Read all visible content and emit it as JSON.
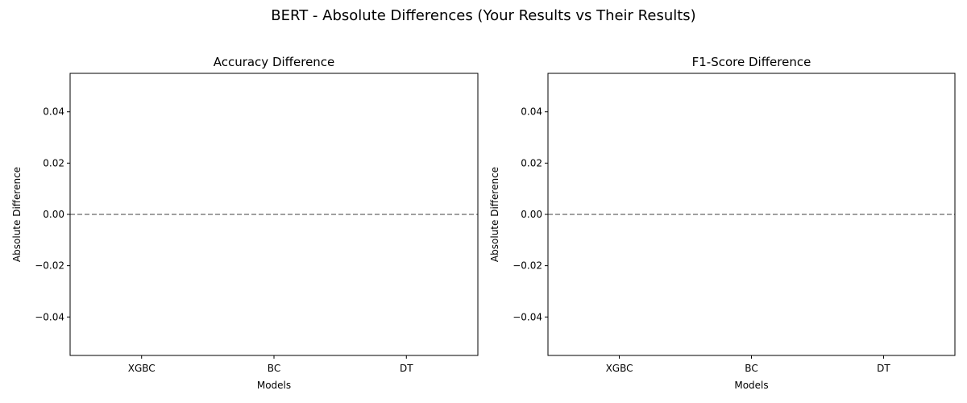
{
  "suptitle": "BERT - Absolute Differences (Your Results vs Their Results)",
  "colors": {
    "reference_line": "#808080",
    "axes": "#000000",
    "background": "#ffffff"
  },
  "chart_data": [
    {
      "type": "bar",
      "title": "Accuracy Difference",
      "xlabel": "Models",
      "ylabel": "Absolute Difference",
      "categories": [
        "XGBC",
        "BC",
        "DT"
      ],
      "values": [
        0,
        0,
        0
      ],
      "ylim": [
        -0.055,
        0.055
      ],
      "yticks": [
        -0.04,
        -0.02,
        0.0,
        0.02,
        0.04
      ],
      "ytick_labels": [
        "−0.04",
        "−0.02",
        "0.00",
        "0.02",
        "0.04"
      ],
      "reference_line": {
        "y": 0,
        "style": "dashed"
      },
      "grid": false
    },
    {
      "type": "bar",
      "title": "F1-Score Difference",
      "xlabel": "Models",
      "ylabel": "Absolute Difference",
      "categories": [
        "XGBC",
        "BC",
        "DT"
      ],
      "values": [
        0,
        0,
        0
      ],
      "ylim": [
        -0.055,
        0.055
      ],
      "yticks": [
        -0.04,
        -0.02,
        0.0,
        0.02,
        0.04
      ],
      "ytick_labels": [
        "−0.04",
        "−0.02",
        "0.00",
        "0.02",
        "0.04"
      ],
      "reference_line": {
        "y": 0,
        "style": "dashed"
      },
      "grid": false
    }
  ]
}
